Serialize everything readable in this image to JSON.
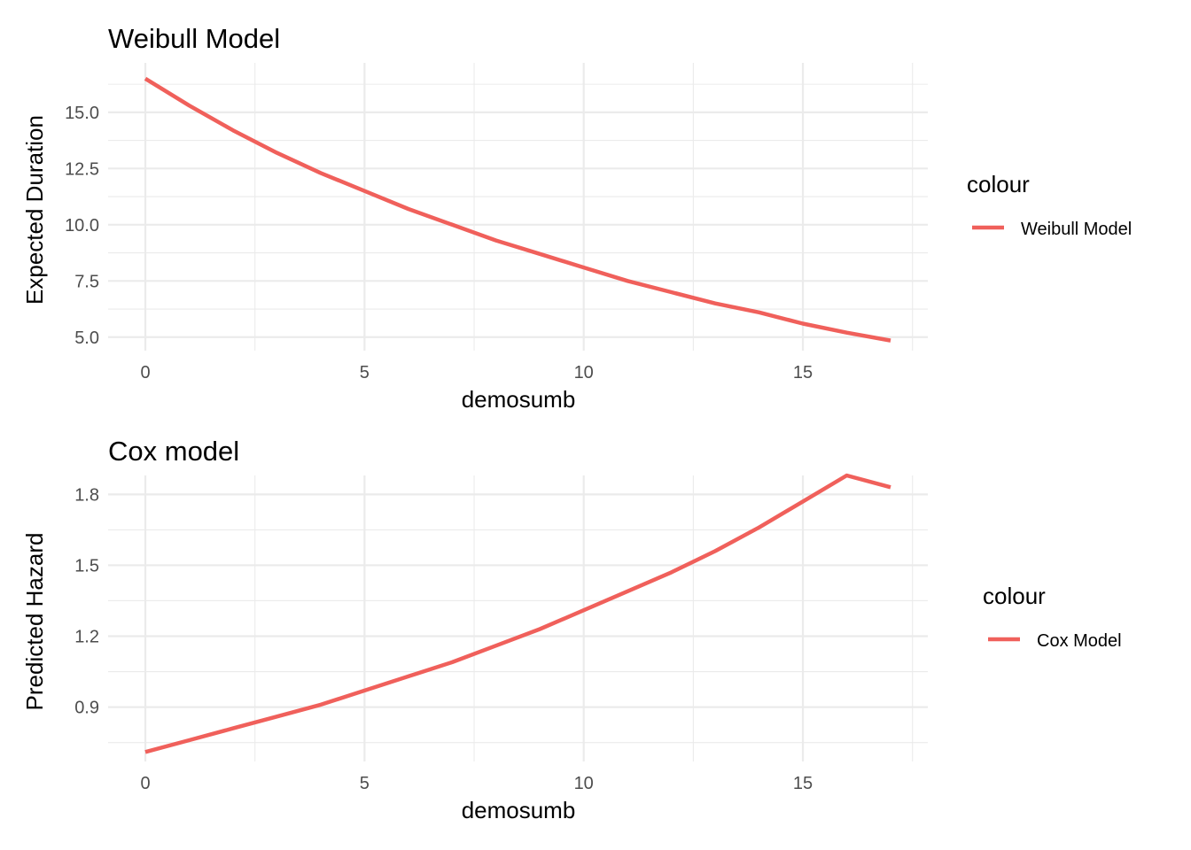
{
  "chart_data": [
    {
      "type": "line",
      "title": "Weibull Model",
      "xlabel": "demosumb",
      "ylabel": "Expected Duration",
      "xlim": [
        -0.85,
        17.85
      ],
      "ylim": [
        4.4,
        17.2
      ],
      "x_ticks": [
        0,
        5,
        10,
        15
      ],
      "x_tick_labels": [
        "0",
        "5",
        "10",
        "15"
      ],
      "y_ticks": [
        5.0,
        7.5,
        10.0,
        12.5,
        15.0
      ],
      "y_tick_labels": [
        "5.0",
        "7.5",
        "10.0",
        "12.5",
        "15.0"
      ],
      "grid": true,
      "legend": {
        "title": "colour",
        "position": "right"
      },
      "series": [
        {
          "name": "Weibull Model",
          "color": "#f0605b",
          "x": [
            0,
            1,
            2,
            3,
            4,
            5,
            6,
            7,
            8,
            9,
            10,
            11,
            12,
            13,
            14,
            15,
            16,
            17
          ],
          "y": [
            16.5,
            15.3,
            14.2,
            13.2,
            12.3,
            11.5,
            10.7,
            10.0,
            9.3,
            8.7,
            8.1,
            7.5,
            7.0,
            6.5,
            6.1,
            5.6,
            5.2,
            4.85
          ]
        }
      ]
    },
    {
      "type": "line",
      "title": "Cox model",
      "xlabel": "demosumb",
      "ylabel": "Predicted Hazard",
      "xlim": [
        -0.85,
        17.85
      ],
      "ylim": [
        0.67,
        1.88
      ],
      "x_ticks": [
        0,
        5,
        10,
        15
      ],
      "x_tick_labels": [
        "0",
        "5",
        "10",
        "15"
      ],
      "y_ticks": [
        0.9,
        1.2,
        1.5,
        1.8
      ],
      "y_tick_labels": [
        "0.9",
        "1.2",
        "1.5",
        "1.8"
      ],
      "grid": true,
      "legend": {
        "title": "colour",
        "position": "right"
      },
      "series": [
        {
          "name": "Cox Model",
          "color": "#f0605b",
          "x": [
            0,
            1,
            2,
            3,
            4,
            5,
            6,
            7,
            8,
            9,
            10,
            11,
            12,
            13,
            14,
            15,
            16,
            17
          ],
          "y": [
            0.71,
            0.76,
            0.81,
            0.86,
            0.91,
            0.97,
            1.03,
            1.09,
            1.16,
            1.23,
            1.31,
            1.39,
            1.47,
            1.56,
            1.66,
            1.77,
            1.88,
            1.83
          ]
        }
      ]
    }
  ]
}
